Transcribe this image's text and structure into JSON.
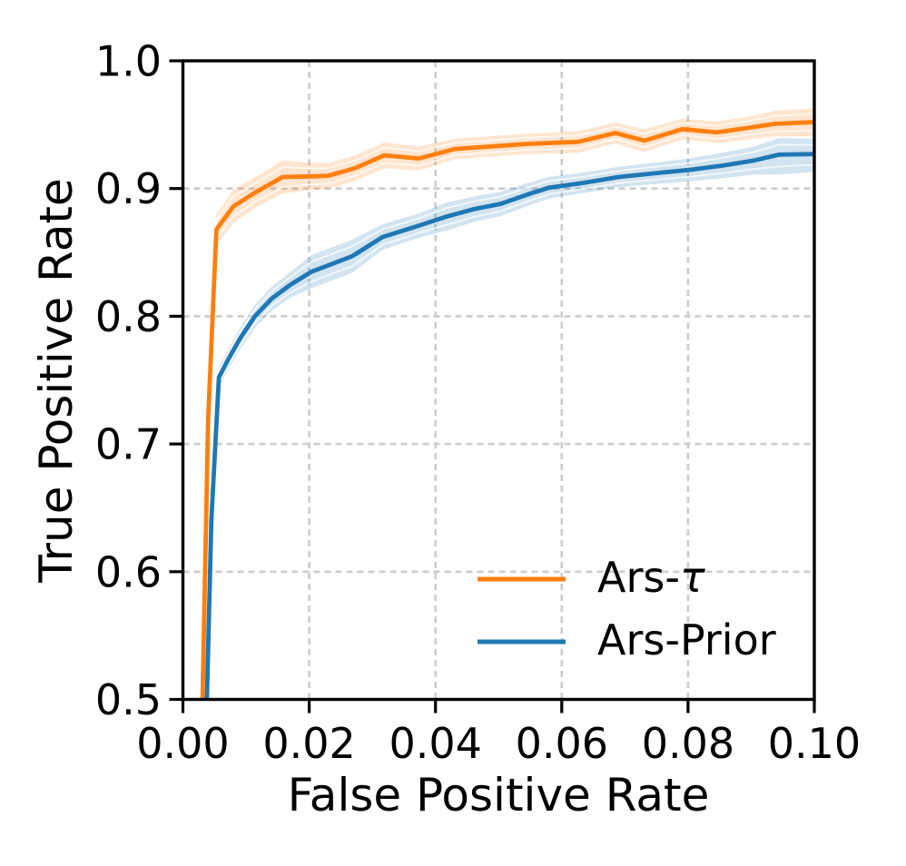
{
  "chart_data": {
    "type": "line",
    "title": "",
    "xlabel": "False Positive Rate",
    "ylabel": "True Positive Rate",
    "xlim": [
      0.0,
      0.1
    ],
    "ylim": [
      0.5,
      1.0
    ],
    "xticks": [
      0.0,
      0.02,
      0.04,
      0.06,
      0.08,
      0.1
    ],
    "xtick_labels": [
      "0.00",
      "0.02",
      "0.04",
      "0.06",
      "0.08",
      "0.10"
    ],
    "yticks": [
      0.5,
      0.6,
      0.7,
      0.8,
      0.9,
      1.0
    ],
    "ytick_labels": [
      "0.5",
      "0.6",
      "0.7",
      "0.8",
      "0.9",
      "1.0"
    ],
    "grid": true,
    "grid_color": "#cccccc",
    "axes_color": "#000000",
    "background": "#ffffff",
    "legend": {
      "position": "lower right",
      "frame": false,
      "items": [
        {
          "prefix": "Ars-",
          "symbol": "τ",
          "symbol_italic": true,
          "full_label": "Ars-τ",
          "color": "#ff7f0e"
        },
        {
          "prefix": "Ars-Prior",
          "symbol": "",
          "symbol_italic": false,
          "full_label": "Ars-Prior",
          "color": "#1f77b4"
        }
      ]
    },
    "series": [
      {
        "name": "Ars-τ",
        "color": "#ff7f0e",
        "band_opacity": 0.2,
        "x": [
          0.0031,
          0.004,
          0.0053,
          0.008,
          0.0115,
          0.0158,
          0.0205,
          0.023,
          0.0273,
          0.0319,
          0.0374,
          0.0431,
          0.0489,
          0.0546,
          0.0626,
          0.0685,
          0.0731,
          0.0791,
          0.0846,
          0.09,
          0.0938,
          0.1
        ],
        "y": [
          0.5,
          0.72,
          0.868,
          0.886,
          0.897,
          0.909,
          0.9095,
          0.91,
          0.916,
          0.926,
          0.9235,
          0.931,
          0.933,
          0.935,
          0.9365,
          0.9435,
          0.9375,
          0.9465,
          0.944,
          0.9478,
          0.9507,
          0.952
        ],
        "band_upper": [
          0.5,
          0.724,
          0.88,
          0.899,
          0.909,
          0.922,
          0.92,
          0.92,
          0.926,
          0.936,
          0.933,
          0.939,
          0.941,
          0.943,
          0.945,
          0.9515,
          0.9465,
          0.9545,
          0.9525,
          0.9568,
          0.9607,
          0.963
        ],
        "band_lower": [
          0.5,
          0.716,
          0.856,
          0.873,
          0.885,
          0.896,
          0.899,
          0.9,
          0.906,
          0.916,
          0.914,
          0.923,
          0.925,
          0.927,
          0.928,
          0.9355,
          0.9285,
          0.9385,
          0.9355,
          0.9388,
          0.9407,
          0.941
        ]
      },
      {
        "name": "Ars-Prior",
        "color": "#1f77b4",
        "band_opacity": 0.2,
        "x": [
          0.0038,
          0.0045,
          0.0057,
          0.0072,
          0.0091,
          0.0114,
          0.0141,
          0.017,
          0.0204,
          0.0268,
          0.0316,
          0.0374,
          0.0417,
          0.0462,
          0.0503,
          0.055,
          0.058,
          0.0635,
          0.069,
          0.0758,
          0.08,
          0.0855,
          0.0905,
          0.0944,
          0.1
        ],
        "y": [
          0.5,
          0.64,
          0.752,
          0.7665,
          0.783,
          0.8,
          0.814,
          0.8246,
          0.835,
          0.847,
          0.862,
          0.871,
          0.878,
          0.884,
          0.888,
          0.896,
          0.9007,
          0.9045,
          0.909,
          0.9125,
          0.9145,
          0.918,
          0.922,
          0.9265,
          0.927
        ],
        "band_upper": [
          0.5,
          0.643,
          0.76,
          0.7745,
          0.7915,
          0.809,
          0.8235,
          0.8346,
          0.848,
          0.86,
          0.872,
          0.8805,
          0.889,
          0.894,
          0.8975,
          0.905,
          0.9092,
          0.9125,
          0.917,
          0.921,
          0.9235,
          0.928,
          0.933,
          0.9395,
          0.939
        ],
        "band_lower": [
          0.5,
          0.637,
          0.744,
          0.7585,
          0.7745,
          0.791,
          0.8045,
          0.8146,
          0.822,
          0.834,
          0.852,
          0.8615,
          0.867,
          0.874,
          0.8785,
          0.887,
          0.8922,
          0.8965,
          0.901,
          0.904,
          0.9055,
          0.908,
          0.911,
          0.911,
          0.913
        ]
      }
    ]
  }
}
